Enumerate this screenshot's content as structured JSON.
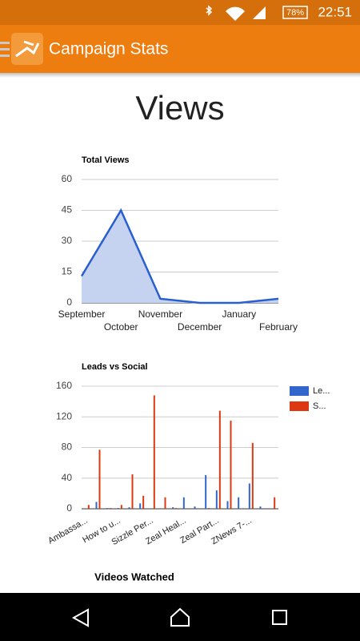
{
  "status_bar": {
    "battery": "78%",
    "time": "22:51"
  },
  "app_bar": {
    "title": "Campaign Stats"
  },
  "heading": "Views",
  "chart_data": [
    {
      "type": "area",
      "title": "Total Views",
      "categories": [
        "September",
        "October",
        "November",
        "December",
        "January",
        "February"
      ],
      "values": [
        13,
        45,
        2,
        0,
        0,
        2
      ],
      "color": "#2a5fcf",
      "fill": "#c5d3f0",
      "ylim": [
        0,
        60
      ],
      "yticks": [
        0,
        15,
        30,
        45,
        60
      ],
      "grid": true
    },
    {
      "type": "bar",
      "title": "Leads vs Social",
      "categories": [
        "Ambassa...",
        null,
        null,
        "How to u...",
        null,
        null,
        "Sizzle Per...",
        null,
        null,
        "Zeal Heal...",
        null,
        null,
        "Zeal Part...",
        null,
        null,
        "ZNews 7-...",
        null,
        null
      ],
      "series": [
        {
          "name": "Le...",
          "color": "#3366cc",
          "values": [
            0,
            9,
            1,
            1,
            2,
            7,
            0,
            0,
            2,
            15,
            3,
            44,
            24,
            10,
            15,
            33,
            3,
            0
          ]
        },
        {
          "name": "S...",
          "color": "#dc3912",
          "values": [
            5,
            77,
            1,
            5,
            45,
            17,
            148,
            15,
            1,
            0,
            0,
            1,
            128,
            115,
            0,
            86,
            0,
            15
          ]
        }
      ],
      "ylim": [
        0,
        160
      ],
      "yticks": [
        0,
        40,
        80,
        120,
        160
      ],
      "grid": true,
      "legend": "right"
    }
  ],
  "section_title": "Videos Watched"
}
